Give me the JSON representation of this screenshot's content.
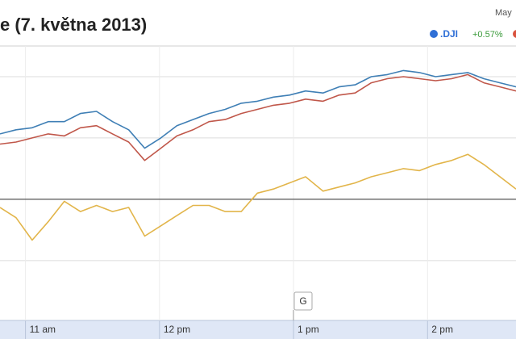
{
  "chart_data": {
    "type": "line",
    "title": "e (7. května 2013)",
    "header_note": "May",
    "legend_change": "+0.57%",
    "marker": "G",
    "x": [
      10.81,
      10.93,
      11.05,
      11.17,
      11.29,
      11.41,
      11.53,
      11.65,
      11.77,
      11.89,
      12.01,
      12.13,
      12.25,
      12.37,
      12.49,
      12.61,
      12.73,
      12.85,
      12.97,
      13.09,
      13.22,
      13.34,
      13.46,
      13.58,
      13.7,
      13.82,
      13.94,
      14.06,
      14.18,
      14.3,
      14.42,
      14.54,
      14.66
    ],
    "xlim": [
      10.81,
      14.66
    ],
    "xticks": [
      {
        "value": 11,
        "label": "11 am"
      },
      {
        "value": 12,
        "label": "12 pm"
      },
      {
        "value": 13,
        "label": "1 pm"
      },
      {
        "value": 14,
        "label": "2 pm"
      }
    ],
    "ylim": [
      -0.585,
      0.75
    ],
    "gridlines": [
      -0.3,
      0.3,
      0.6
    ],
    "baseline": 0,
    "series": [
      {
        "name": ".DJI",
        "color": "#3f7fb5",
        "values": [
          0.32,
          0.34,
          0.35,
          0.38,
          0.38,
          0.42,
          0.43,
          0.38,
          0.34,
          0.25,
          0.3,
          0.36,
          0.39,
          0.42,
          0.44,
          0.47,
          0.48,
          0.5,
          0.51,
          0.53,
          0.52,
          0.55,
          0.56,
          0.6,
          0.61,
          0.63,
          0.62,
          0.6,
          0.61,
          0.62,
          0.59,
          0.57,
          0.55
        ]
      },
      {
        "color": "#c0574a",
        "values": [
          0.27,
          0.28,
          0.3,
          0.32,
          0.31,
          0.35,
          0.36,
          0.32,
          0.28,
          0.19,
          0.25,
          0.31,
          0.34,
          0.38,
          0.39,
          0.42,
          0.44,
          0.46,
          0.47,
          0.49,
          0.48,
          0.51,
          0.52,
          0.57,
          0.59,
          0.6,
          0.59,
          0.58,
          0.59,
          0.61,
          0.57,
          0.55,
          0.53
        ]
      },
      {
        "color": "#e2b54a",
        "values": [
          -0.04,
          -0.09,
          -0.2,
          -0.11,
          -0.01,
          -0.06,
          -0.03,
          -0.06,
          -0.04,
          -0.18,
          -0.13,
          -0.08,
          -0.03,
          -0.03,
          -0.06,
          -0.06,
          0.03,
          0.05,
          0.08,
          0.11,
          0.04,
          0.06,
          0.08,
          0.11,
          0.13,
          0.15,
          0.14,
          0.17,
          0.19,
          0.22,
          0.17,
          0.11,
          0.05
        ]
      }
    ]
  }
}
